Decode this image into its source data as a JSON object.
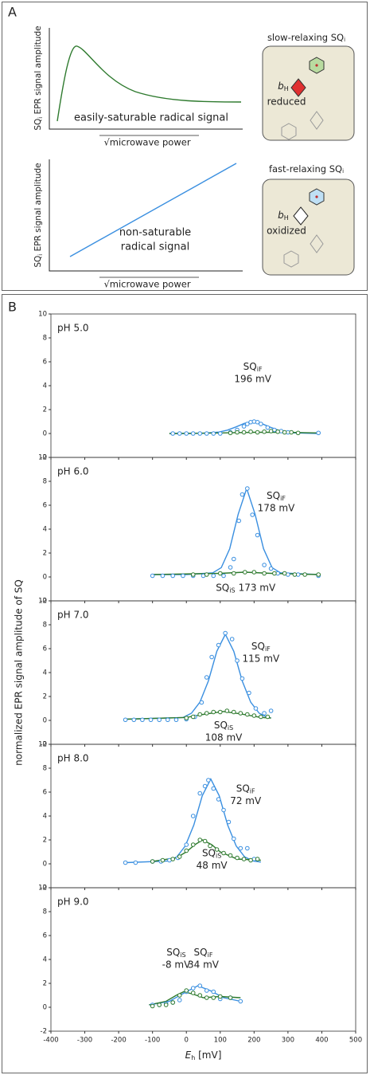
{
  "panel_a": {
    "label": "A",
    "top": {
      "y_label": {
        "main": "SQ",
        "sub": "i",
        "rest": " EPR signal amplitude"
      },
      "x_label": "√microwave power",
      "curve_label": "easily-saturable radical signal",
      "box_title": {
        "main": "slow-relaxing SQ",
        "sub": "i"
      },
      "site": {
        "main": "b",
        "sub": "H"
      },
      "state": "reduced"
    },
    "bottom": {
      "y_label": {
        "main": "SQ",
        "sub": "i",
        "rest": " EPR signal amplitude"
      },
      "x_label": "√microwave power",
      "curve_label": [
        "non-saturable",
        "radical signal"
      ],
      "box_title": {
        "main": "fast-relaxing SQ",
        "sub": "i"
      },
      "site": {
        "main": "b",
        "sub": "H"
      },
      "state": "oxidized"
    }
  },
  "panel_b": {
    "label": "B",
    "y_label": "normalized EPR signal amplitude of SQ",
    "x_label": {
      "main": "E",
      "sub": "h",
      "rest": " [mV]"
    }
  },
  "chart_data": [
    {
      "type": "scatter",
      "title": "pH 5.0",
      "xlim": [
        -400,
        500
      ],
      "xticks": [
        -400,
        -300,
        -200,
        -100,
        0,
        100,
        200,
        300,
        400,
        500
      ],
      "ylim": [
        -2,
        10
      ],
      "yticks": [
        -2,
        0,
        2,
        4,
        6,
        8,
        10
      ],
      "series": [
        {
          "kind": "curve",
          "color": "#3a8fe0",
          "x": [
            -50,
            0,
            50,
            96,
            121,
            146,
            171,
            196,
            221,
            246,
            271,
            296,
            321,
            390
          ],
          "values": [
            0,
            0,
            0.02,
            0.12,
            0.28,
            0.55,
            0.85,
            1,
            0.85,
            0.55,
            0.28,
            0.12,
            0.05,
            0
          ]
        },
        {
          "kind": "curve",
          "color": "#2e7a2e",
          "x": [
            -50,
            100,
            200,
            300,
            390
          ],
          "values": [
            0,
            0.05,
            0.1,
            0.1,
            0.05
          ]
        },
        {
          "kind": "points",
          "color": "#3a8fe0",
          "x": [
            -40,
            -20,
            0,
            20,
            40,
            60,
            80,
            100,
            130,
            150,
            170,
            180,
            190,
            200,
            210,
            220,
            240,
            260,
            280,
            300,
            390
          ],
          "values": [
            0,
            0,
            0,
            0,
            0,
            0,
            0,
            0,
            0.1,
            0.3,
            0.6,
            0.8,
            0.95,
            1,
            0.95,
            0.8,
            0.5,
            0.3,
            0.2,
            0.1,
            0.05
          ]
        },
        {
          "kind": "points",
          "color": "#2e7a2e",
          "x": [
            130,
            150,
            170,
            190,
            210,
            230,
            250,
            270,
            290,
            310,
            330
          ],
          "values": [
            0.05,
            0.1,
            0.1,
            0.15,
            0.1,
            0.15,
            0.2,
            0.15,
            0.1,
            0.1,
            0.05
          ]
        }
      ],
      "annotations": [
        {
          "text": "SQ",
          "sub": "iF",
          "label": "196 mV",
          "color": "#3a8fe0"
        }
      ]
    },
    {
      "type": "scatter",
      "title": "pH 6.0",
      "xlim": [
        -400,
        500
      ],
      "xticks": [
        -400,
        -300,
        -200,
        -100,
        0,
        100,
        200,
        300,
        400,
        500
      ],
      "ylim": [
        -2,
        10
      ],
      "yticks": [
        -2,
        0,
        2,
        4,
        6,
        8,
        10
      ],
      "series": [
        {
          "kind": "curve",
          "color": "#3a8fe0",
          "x": [
            -100,
            0,
            78,
            103,
            128,
            153,
            178,
            203,
            228,
            253,
            278,
            390
          ],
          "values": [
            0.2,
            0.2,
            0.35,
            0.78,
            2.36,
            5.24,
            7.4,
            5.24,
            2.36,
            0.78,
            0.35,
            0.2
          ]
        },
        {
          "kind": "curve",
          "color": "#2e7a2e",
          "x": [
            -100,
            100,
            173,
            250,
            390
          ],
          "values": [
            0.2,
            0.3,
            0.4,
            0.3,
            0.2
          ]
        },
        {
          "kind": "points",
          "color": "#3a8fe0",
          "x": [
            -100,
            -70,
            -40,
            -10,
            20,
            50,
            80,
            110,
            130,
            140,
            155,
            165,
            180,
            195,
            210,
            230,
            250,
            270,
            300,
            330,
            390
          ],
          "values": [
            0.1,
            0.1,
            0.1,
            0.1,
            0.1,
            0.1,
            0.1,
            0.1,
            0.8,
            1.5,
            4.7,
            6.9,
            7.4,
            5.2,
            3.5,
            1,
            0.7,
            0.3,
            0.2,
            0.2,
            0.1
          ]
        },
        {
          "kind": "points",
          "color": "#2e7a2e",
          "x": [
            20,
            60,
            100,
            140,
            173,
            200,
            230,
            260,
            290,
            320,
            350,
            390
          ],
          "values": [
            0.2,
            0.2,
            0.3,
            0.3,
            0.4,
            0.4,
            0.3,
            0.3,
            0.3,
            0.2,
            0.2,
            0.2
          ]
        }
      ],
      "annotations": [
        {
          "text": "SQ",
          "sub": "iF",
          "label": "178 mV",
          "color": "#3a8fe0"
        },
        {
          "text": "SQ",
          "sub": "iS",
          "label": "173 mV",
          "color": "#2e7a2e"
        }
      ]
    },
    {
      "type": "scatter",
      "title": "pH 7.0",
      "xlim": [
        -400,
        500
      ],
      "xticks": [
        -400,
        -300,
        -200,
        -100,
        0,
        100,
        200,
        300,
        400,
        500
      ],
      "ylim": [
        -2,
        10
      ],
      "yticks": [
        -2,
        0,
        2,
        4,
        6,
        8,
        10
      ],
      "series": [
        {
          "kind": "curve",
          "color": "#3a8fe0",
          "x": [
            -180,
            -10,
            15,
            40,
            65,
            90,
            115,
            140,
            165,
            190,
            215,
            240,
            250
          ],
          "values": [
            0.1,
            0.24,
            0.6,
            1.52,
            3.3,
            5.78,
            7.2,
            5.78,
            3.3,
            1.52,
            0.6,
            0.24,
            0.2
          ]
        },
        {
          "kind": "curve",
          "color": "#2e7a2e",
          "x": [
            -180,
            0,
            50,
            108,
            160,
            220,
            250
          ],
          "values": [
            0.1,
            0.25,
            0.5,
            0.75,
            0.55,
            0.25,
            0.2
          ]
        },
        {
          "kind": "points",
          "color": "#3a8fe0",
          "x": [
            -180,
            -155,
            -130,
            -105,
            -80,
            -55,
            -30,
            0,
            25,
            45,
            60,
            75,
            95,
            115,
            135,
            150,
            165,
            185,
            205,
            230,
            250
          ],
          "values": [
            0.05,
            0.05,
            0.05,
            0.05,
            0.05,
            0.05,
            0.05,
            0.1,
            0.3,
            1.5,
            3.6,
            5.3,
            6.3,
            7.3,
            6.8,
            5,
            3.5,
            2.3,
            1,
            0.6,
            0.8
          ]
        },
        {
          "kind": "points",
          "color": "#2e7a2e",
          "x": [
            0,
            20,
            40,
            60,
            80,
            100,
            120,
            140,
            160,
            180,
            200,
            220,
            240
          ],
          "values": [
            0.2,
            0.3,
            0.5,
            0.6,
            0.7,
            0.7,
            0.8,
            0.7,
            0.6,
            0.5,
            0.4,
            0.3,
            0.3
          ]
        }
      ],
      "annotations": [
        {
          "text": "SQ",
          "sub": "iF",
          "label": "115 mV",
          "color": "#3a8fe0"
        },
        {
          "text": "SQ",
          "sub": "iS",
          "label": "108 mV",
          "color": "#2e7a2e"
        }
      ]
    },
    {
      "type": "scatter",
      "title": "pH 8.0",
      "xlim": [
        -400,
        500
      ],
      "xticks": [
        -400,
        -300,
        -200,
        -100,
        0,
        100,
        200,
        300,
        400,
        500
      ],
      "ylim": [
        -2,
        10
      ],
      "yticks": [
        -2,
        0,
        2,
        4,
        6,
        8,
        10
      ],
      "series": [
        {
          "kind": "curve",
          "color": "#3a8fe0",
          "x": [
            -180,
            -53,
            -28,
            -3,
            22,
            47,
            72,
            97,
            122,
            147,
            172,
            197,
            220
          ],
          "values": [
            0.1,
            0.24,
            0.59,
            1.5,
            3.25,
            5.7,
            7.1,
            5.7,
            3.25,
            1.5,
            0.59,
            0.24,
            0.15
          ]
        },
        {
          "kind": "curve",
          "color": "#2e7a2e",
          "x": [
            -100,
            -30,
            0,
            25,
            48,
            75,
            100,
            150,
            220
          ],
          "values": [
            0.2,
            0.5,
            1,
            1.6,
            2,
            1.6,
            1,
            0.4,
            0.3
          ]
        },
        {
          "kind": "points",
          "color": "#3a8fe0",
          "x": [
            -180,
            -150,
            -100,
            -75,
            -50,
            -25,
            0,
            20,
            40,
            55,
            65,
            80,
            95,
            110,
            125,
            140,
            160,
            180,
            200
          ],
          "values": [
            0.1,
            0.1,
            0.2,
            0.2,
            0.3,
            0.5,
            1.6,
            4,
            5.9,
            6.5,
            7,
            6.3,
            5.4,
            4.5,
            3.5,
            2.1,
            1.3,
            1.3,
            0.4
          ]
        },
        {
          "kind": "points",
          "color": "#2e7a2e",
          "x": [
            -100,
            -70,
            -40,
            -20,
            0,
            20,
            40,
            55,
            70,
            90,
            110,
            130,
            150,
            170,
            190,
            210
          ],
          "values": [
            0.2,
            0.3,
            0.4,
            0.6,
            1.1,
            1.6,
            2,
            1.9,
            1.5,
            1.2,
            0.9,
            0.7,
            0.5,
            0.4,
            0.3,
            0.4
          ]
        }
      ],
      "annotations": [
        {
          "text": "SQ",
          "sub": "iF",
          "label": "72 mV",
          "color": "#3a8fe0"
        },
        {
          "text": "SQ",
          "sub": "iS",
          "label": "48 mV",
          "color": "#2e7a2e"
        }
      ]
    },
    {
      "type": "scatter",
      "title": "pH 9.0",
      "xlim": [
        -400,
        500
      ],
      "xticks": [
        -400,
        -300,
        -200,
        -100,
        0,
        100,
        200,
        300,
        400,
        500
      ],
      "ylim": [
        -2,
        10
      ],
      "yticks": [
        -2,
        0,
        2,
        4,
        6,
        8,
        10
      ],
      "series": [
        {
          "kind": "curve",
          "color": "#3a8fe0",
          "x": [
            -110,
            -50,
            0,
            34,
            70,
            110,
            160
          ],
          "values": [
            0.2,
            0.5,
            1.3,
            1.8,
            1.4,
            0.8,
            0.5
          ]
        },
        {
          "kind": "curve",
          "color": "#2e7a2e",
          "x": [
            -110,
            -60,
            -30,
            -8,
            20,
            50,
            100,
            160
          ],
          "values": [
            0.2,
            0.5,
            1,
            1.3,
            1.1,
            0.8,
            0.9,
            0.8
          ]
        },
        {
          "kind": "points",
          "color": "#3a8fe0",
          "x": [
            -100,
            -80,
            -60,
            -40,
            -20,
            0,
            20,
            40,
            60,
            80,
            100,
            130,
            160
          ],
          "values": [
            0.2,
            0.2,
            0.3,
            0.4,
            0.6,
            1.3,
            1.6,
            1.8,
            1.4,
            1.3,
            0.7,
            0.8,
            0.5
          ]
        },
        {
          "kind": "points",
          "color": "#2e7a2e",
          "x": [
            -100,
            -80,
            -60,
            -40,
            -20,
            0,
            20,
            40,
            60,
            80,
            100,
            130
          ],
          "values": [
            0.1,
            0.2,
            0.2,
            0.4,
            1,
            1.4,
            1.2,
            1,
            0.8,
            0.8,
            0.9,
            0.8
          ]
        }
      ],
      "annotations": [
        {
          "text": "SQ",
          "sub": "iS",
          "label": "-8 mV",
          "color": "#2e7a2e"
        },
        {
          "text": "SQ",
          "sub": "iF",
          "label": "34 mV",
          "color": "#3a8fe0"
        }
      ]
    }
  ]
}
